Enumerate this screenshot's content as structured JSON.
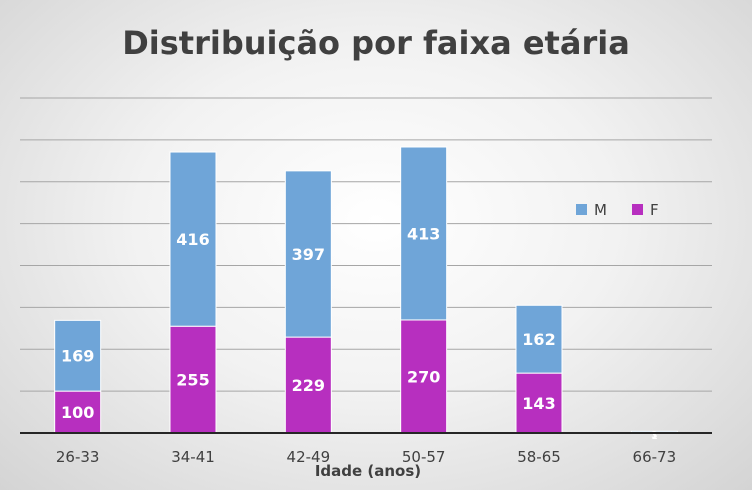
{
  "chart_data": {
    "type": "bar",
    "stacked": true,
    "title": "Distribuição por faixa etária",
    "xlabel": "Idade (anos)",
    "ylabel": "",
    "categories": [
      "26-33",
      "34-41",
      "42-49",
      "50-57",
      "58-65",
      "66-73"
    ],
    "series": [
      {
        "name": "F",
        "values": [
          100,
          255,
          229,
          270,
          143,
          1
        ],
        "labels": [
          "100",
          "255",
          "229",
          "270",
          "143",
          "1"
        ],
        "color": "#b72fbf"
      },
      {
        "name": "M",
        "values": [
          169,
          416,
          397,
          413,
          162,
          3
        ],
        "labels": [
          "169",
          "416",
          "397",
          "413",
          "162",
          "3"
        ],
        "color": "#6fa5d8"
      }
    ],
    "ylim": [
      0,
      800
    ],
    "grid": true,
    "legend_position": "right",
    "legend_order": [
      "M",
      "F"
    ]
  }
}
